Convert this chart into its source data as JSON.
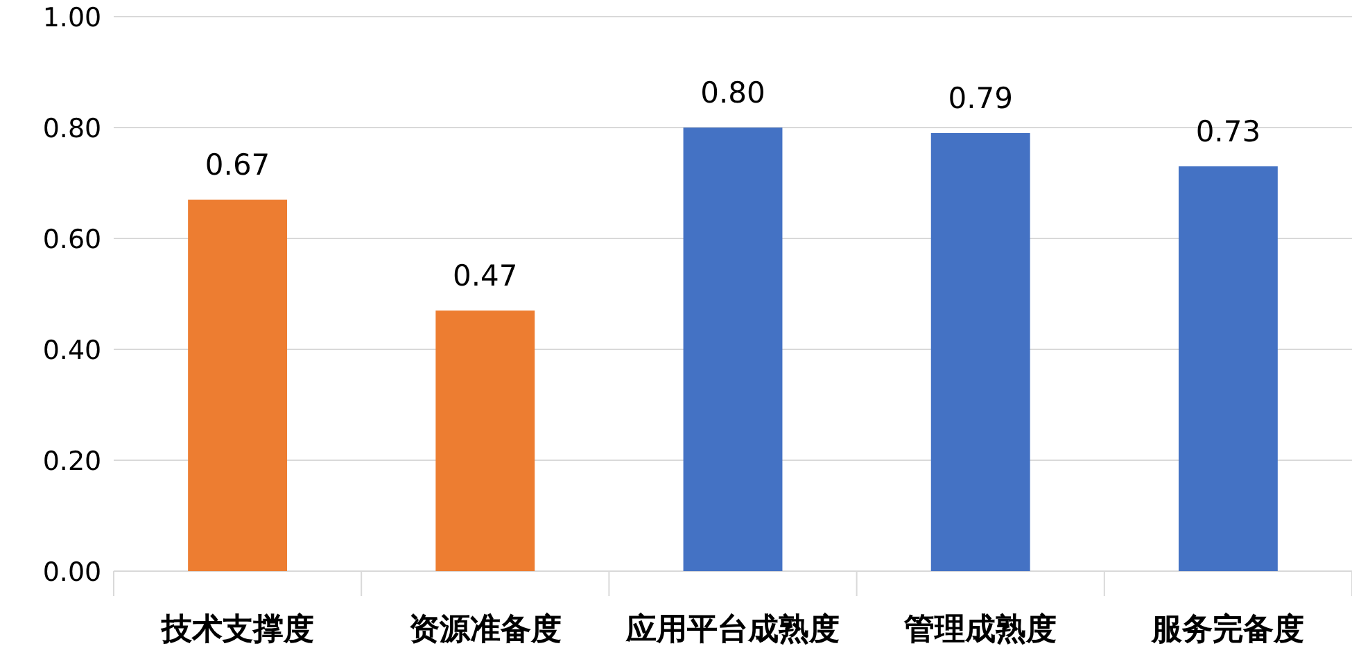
{
  "chart_data": {
    "type": "bar",
    "categories": [
      "技术支撑度",
      "资源准备度",
      "应用平台成熟度",
      "管理成熟度",
      "服务完备度"
    ],
    "values": [
      0.67,
      0.47,
      0.8,
      0.79,
      0.73
    ],
    "colors": [
      "#ed7d31",
      "#ed7d31",
      "#4472c4",
      "#4472c4",
      "#4472c4"
    ],
    "value_labels": [
      "0.67",
      "0.47",
      "0.80",
      "0.79",
      "0.73"
    ],
    "ylim": [
      0,
      1
    ],
    "yticks": [
      {
        "value": 0,
        "label": "0.00"
      },
      {
        "value": 0.2,
        "label": "0.20"
      },
      {
        "value": 0.4,
        "label": "0.40"
      },
      {
        "value": 0.6,
        "label": "0.60"
      },
      {
        "value": 0.8,
        "label": "0.80"
      },
      {
        "value": 1,
        "label": "1.00"
      }
    ],
    "grid": "y"
  }
}
